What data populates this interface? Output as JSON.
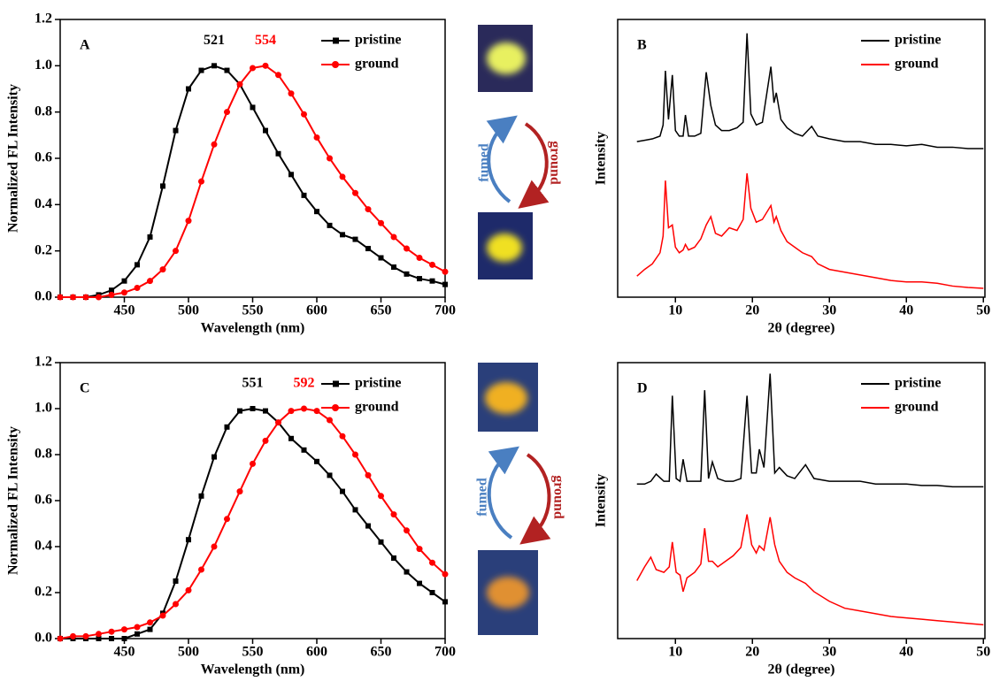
{
  "chart_data": [
    {
      "type": "line",
      "panel_label": "A",
      "xlabel": "Wavelength (nm)",
      "ylabel": "Normalized FL Intensity",
      "x": [
        400,
        410,
        420,
        430,
        440,
        450,
        460,
        470,
        480,
        490,
        500,
        510,
        520,
        530,
        540,
        550,
        560,
        570,
        580,
        590,
        600,
        610,
        620,
        630,
        640,
        650,
        660,
        670,
        680,
        690,
        700
      ],
      "series": [
        {
          "name": "pristine",
          "color": "#000000",
          "marker": "square",
          "peak_label": "521",
          "values": [
            0,
            0,
            0,
            0.01,
            0.03,
            0.07,
            0.14,
            0.26,
            0.48,
            0.72,
            0.9,
            0.98,
            1.0,
            0.98,
            0.92,
            0.82,
            0.72,
            0.62,
            0.53,
            0.44,
            0.37,
            0.31,
            0.27,
            0.25,
            0.21,
            0.17,
            0.13,
            0.1,
            0.08,
            0.07,
            0.055
          ]
        },
        {
          "name": "ground",
          "color": "#ff0000",
          "marker": "circle",
          "peak_label": "554",
          "values": [
            0,
            0,
            0,
            0,
            0.01,
            0.02,
            0.04,
            0.07,
            0.12,
            0.2,
            0.33,
            0.5,
            0.66,
            0.8,
            0.92,
            0.99,
            1.0,
            0.96,
            0.88,
            0.79,
            0.69,
            0.6,
            0.52,
            0.45,
            0.38,
            0.32,
            0.26,
            0.21,
            0.17,
            0.14,
            0.11
          ]
        }
      ],
      "xlim": [
        400,
        700
      ],
      "xticks": [
        450,
        500,
        550,
        600,
        650,
        700
      ],
      "ylim": [
        0,
        1.2
      ],
      "yticks": [
        {
          "value": 0,
          "label": "0.0"
        },
        {
          "value": 0.2,
          "label": "0.2"
        },
        {
          "value": 0.4,
          "label": "0.4"
        },
        {
          "value": 0.6,
          "label": "0.6"
        },
        {
          "value": 0.8,
          "label": "0.8"
        },
        {
          "value": 1.0,
          "label": "1.0"
        },
        {
          "value": 1.2,
          "label": "1.2"
        }
      ],
      "legend": "upper right"
    },
    {
      "type": "line",
      "panel_label": "B",
      "xlabel": "2θ (degree)",
      "ylabel": "Intensity",
      "x": [
        5,
        6,
        7,
        8,
        8.4,
        8.7,
        9.1,
        9.6,
        10,
        10.5,
        11,
        11.3,
        11.7,
        12.5,
        13.3,
        14,
        14.6,
        15.2,
        16,
        17,
        18,
        18.8,
        19.3,
        19.8,
        20.5,
        21.3,
        22.4,
        22.8,
        23.1,
        23.7,
        24.5,
        25.5,
        26.5,
        27.7,
        28.5,
        30,
        32,
        34,
        36,
        38,
        40,
        42,
        44,
        46,
        48,
        50
      ],
      "series": [
        {
          "name": "pristine",
          "color": "#000000",
          "values": [
            56,
            56.5,
            57,
            58,
            62,
            81.5,
            64,
            80,
            60,
            58,
            58,
            65.6,
            58,
            58,
            59,
            81,
            69,
            62,
            60,
            60,
            61,
            63,
            95,
            66,
            62,
            63,
            83,
            70,
            73.6,
            64,
            61,
            59,
            58,
            61.5,
            58,
            57,
            56,
            56,
            55,
            55,
            54.5,
            55,
            54,
            54,
            53.5,
            53.5
          ]
        },
        {
          "name": "ground",
          "color": "#ff0000",
          "values": [
            7.6,
            10,
            12,
            16,
            22,
            42,
            25,
            26,
            18,
            16,
            17,
            19,
            17,
            18,
            21,
            26,
            29,
            23,
            22,
            25,
            24,
            28,
            44.6,
            32,
            27,
            28,
            33,
            27,
            29,
            24,
            20,
            18,
            16,
            14.6,
            12,
            10,
            9,
            8,
            7,
            6,
            5.5,
            5.5,
            5,
            4,
            3.5,
            3.2
          ]
        }
      ],
      "xlim": [
        2.5,
        50.2
      ],
      "xticks": [
        10,
        20,
        30,
        40,
        50
      ],
      "ylim": [
        0,
        100
      ],
      "legend": "upper right"
    },
    {
      "type": "line",
      "panel_label": "C",
      "xlabel": "Wavelength (nm)",
      "ylabel": "Normalized FL Intensity",
      "x": [
        400,
        410,
        420,
        430,
        440,
        450,
        460,
        470,
        480,
        490,
        500,
        510,
        520,
        530,
        540,
        550,
        560,
        570,
        580,
        590,
        600,
        610,
        620,
        630,
        640,
        650,
        660,
        670,
        680,
        690,
        700
      ],
      "series": [
        {
          "name": "pristine",
          "color": "#000000",
          "marker": "square",
          "peak_label": "551",
          "values": [
            0,
            0,
            0,
            0,
            0,
            0,
            0.02,
            0.04,
            0.11,
            0.25,
            0.43,
            0.62,
            0.79,
            0.92,
            0.99,
            1.0,
            0.99,
            0.94,
            0.87,
            0.82,
            0.77,
            0.71,
            0.64,
            0.56,
            0.49,
            0.42,
            0.35,
            0.29,
            0.24,
            0.2,
            0.16
          ]
        },
        {
          "name": "ground",
          "color": "#ff0000",
          "marker": "circle",
          "peak_label": "592",
          "values": [
            0,
            0.01,
            0.01,
            0.02,
            0.03,
            0.04,
            0.05,
            0.07,
            0.1,
            0.15,
            0.21,
            0.3,
            0.4,
            0.52,
            0.64,
            0.76,
            0.86,
            0.94,
            0.99,
            1.0,
            0.99,
            0.95,
            0.88,
            0.8,
            0.71,
            0.62,
            0.54,
            0.47,
            0.39,
            0.33,
            0.28
          ]
        }
      ],
      "xlim": [
        400,
        700
      ],
      "xticks": [
        450,
        500,
        550,
        600,
        650,
        700
      ],
      "ylim": [
        0,
        1.2
      ],
      "yticks": [
        {
          "value": 0,
          "label": "0.0"
        },
        {
          "value": 0.2,
          "label": "0.2"
        },
        {
          "value": 0.4,
          "label": "0.4"
        },
        {
          "value": 0.6,
          "label": "0.6"
        },
        {
          "value": 0.8,
          "label": "0.8"
        },
        {
          "value": 1.0,
          "label": "1.0"
        },
        {
          "value": 1.2,
          "label": "1.2"
        }
      ],
      "legend": "upper right"
    },
    {
      "type": "line",
      "panel_label": "D",
      "xlabel": "2θ (degree)",
      "ylabel": "Intensity",
      "x": [
        5,
        6,
        6.8,
        7.5,
        8.5,
        9.2,
        9.6,
        10.1,
        10.6,
        11,
        11.5,
        12.5,
        13.3,
        13.8,
        14.3,
        14.8,
        15.5,
        16.5,
        17.5,
        18.5,
        19.3,
        19.9,
        20.5,
        20.9,
        21.5,
        22.3,
        22.9,
        23.5,
        24.5,
        25.5,
        26.9,
        28,
        30,
        32,
        34,
        36,
        38,
        40,
        42,
        44,
        46,
        48,
        50
      ],
      "series": [
        {
          "name": "pristine",
          "color": "#000000",
          "values": [
            56,
            56,
            57,
            59.6,
            57,
            57,
            88,
            58,
            57,
            65,
            57,
            57,
            57,
            90,
            58,
            64,
            58,
            57,
            57,
            58,
            88,
            60,
            60,
            68.6,
            62,
            96,
            60,
            62,
            59,
            58,
            63,
            58,
            57,
            57,
            57,
            56,
            56,
            56,
            55.5,
            55.5,
            55,
            55,
            55
          ]
        },
        {
          "name": "ground",
          "color": "#ff0000",
          "values": [
            21,
            26,
            29.5,
            25,
            24,
            26,
            35,
            24,
            23,
            17,
            22,
            24,
            27,
            40,
            28,
            28,
            26,
            28,
            30,
            33,
            45,
            34,
            31,
            33.6,
            32,
            44,
            34,
            28,
            24,
            22,
            20,
            17,
            13.5,
            11,
            10,
            9,
            8,
            7.5,
            7,
            6.5,
            6,
            5.5,
            5
          ]
        }
      ],
      "xlim": [
        2.5,
        50.2
      ],
      "xticks": [
        10,
        20,
        30,
        40,
        50
      ],
      "ylim": [
        0,
        100
      ],
      "legend": "upper right"
    }
  ],
  "schemes": [
    {
      "left_label": "fumed",
      "right_label": "ground"
    },
    {
      "left_label": "fumed",
      "right_label": "ground"
    }
  ]
}
